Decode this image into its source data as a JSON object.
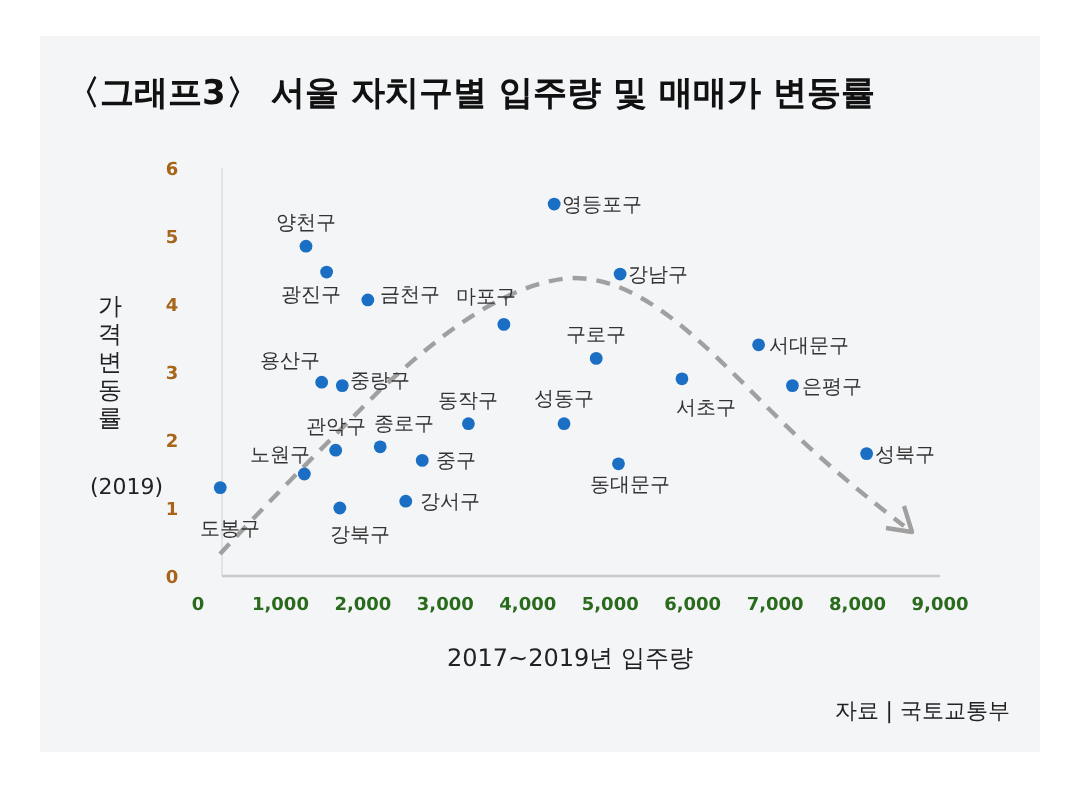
{
  "chart_data": {
    "type": "scatter",
    "title": "〈그래프3〉 서울 자치구별 입주량 및 매매가 변동률",
    "xlabel": "2017~2019년 입주량",
    "ylabel": "가격변동률",
    "xlim": [
      0,
      9000
    ],
    "xticks": [
      {
        "value": 0,
        "label": "0"
      },
      {
        "value": 1000,
        "label": "1,000"
      },
      {
        "value": 2000,
        "label": "2,000"
      },
      {
        "value": 3000,
        "label": "3,000"
      },
      {
        "value": 4000,
        "label": "4,000"
      },
      {
        "value": 5000,
        "label": "5,000"
      },
      {
        "value": 6000,
        "label": "6,000"
      },
      {
        "value": 7000,
        "label": "7,000"
      },
      {
        "value": 8000,
        "label": "8,000"
      },
      {
        "value": 9000,
        "label": "9,000"
      }
    ],
    "ylim": [
      0,
      6
    ],
    "yticks": [
      0,
      1,
      2,
      3,
      4,
      5,
      6
    ],
    "grid": false,
    "marker": "circle",
    "series": [
      {
        "color": "#1a6fc4",
        "x": [
          270,
          1290,
          1720,
          1670,
          1500,
          1750,
          1310,
          1560,
          2060,
          2210,
          2520,
          2720,
          3280,
          3710,
          4320,
          4440,
          4830,
          5120,
          5100,
          5870,
          6800,
          7210,
          8110
        ],
        "values": [
          1.3,
          1.5,
          1.0,
          1.85,
          2.85,
          2.8,
          4.85,
          4.47,
          4.06,
          1.9,
          1.1,
          1.7,
          2.24,
          3.7,
          5.47,
          2.24,
          3.2,
          4.44,
          1.65,
          2.9,
          3.4,
          2.8,
          1.8
        ]
      }
    ],
    "annotations": [
      "(2019)",
      "자료 | 국토교통부",
      {
        "text": "도봉구",
        "x": 270,
        "y": 1.3
      },
      {
        "text": "노원구",
        "x": 1290,
        "y": 1.5
      },
      {
        "text": "강북구",
        "x": 1720,
        "y": 1.0
      },
      {
        "text": "관악구",
        "x": 1670,
        "y": 1.85
      },
      {
        "text": "용산구",
        "x": 1500,
        "y": 2.85
      },
      {
        "text": "중랑구",
        "x": 1750,
        "y": 2.8
      },
      {
        "text": "양천구",
        "x": 1310,
        "y": 4.85
      },
      {
        "text": "광진구",
        "x": 1560,
        "y": 4.47
      },
      {
        "text": "금천구",
        "x": 2060,
        "y": 4.06
      },
      {
        "text": "종로구",
        "x": 2210,
        "y": 1.9
      },
      {
        "text": "강서구",
        "x": 2520,
        "y": 1.1
      },
      {
        "text": "중구",
        "x": 2720,
        "y": 1.7
      },
      {
        "text": "동작구",
        "x": 3280,
        "y": 2.24
      },
      {
        "text": "마포구",
        "x": 3710,
        "y": 3.7
      },
      {
        "text": "영등포구",
        "x": 4320,
        "y": 5.47
      },
      {
        "text": "성동구",
        "x": 4440,
        "y": 2.24
      },
      {
        "text": "구로구",
        "x": 4830,
        "y": 3.2
      },
      {
        "text": "강남구",
        "x": 5120,
        "y": 4.44
      },
      {
        "text": "동대문구",
        "x": 5100,
        "y": 1.65
      },
      {
        "text": "서초구",
        "x": 5870,
        "y": 2.9
      },
      {
        "text": "서대문구",
        "x": 6800,
        "y": 3.4
      },
      {
        "text": "은평구",
        "x": 7210,
        "y": 2.8
      },
      {
        "text": "성북구",
        "x": 8110,
        "y": 1.8
      }
    ]
  }
}
